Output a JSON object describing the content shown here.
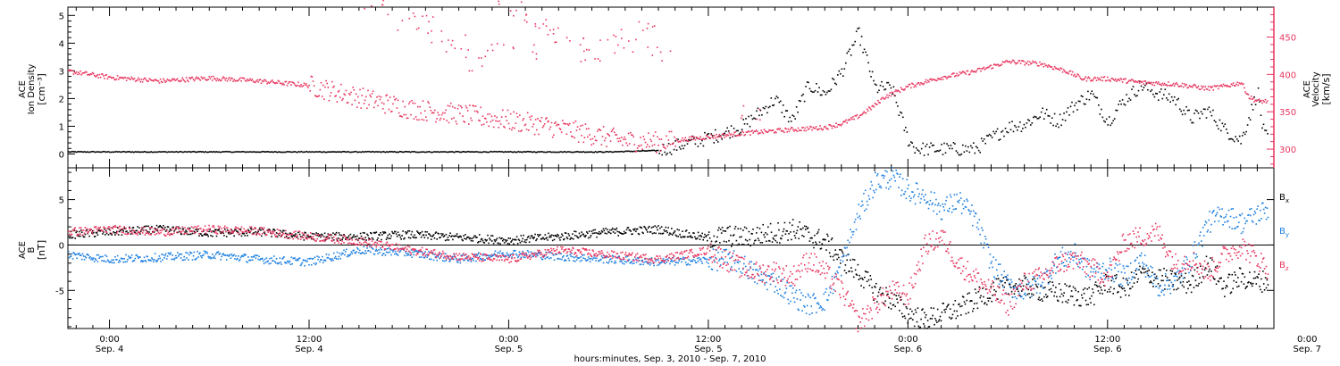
{
  "colors": {
    "black": "#000000",
    "pink": "#e8365f",
    "blue": "#1d7fe0"
  },
  "x_axis": {
    "label": "hours:minutes, Sep.  3, 2010 - Sep.  7, 2010",
    "ticks": [
      {
        "time": "0:00",
        "day": "Sep. 4"
      },
      {
        "time": "12:00",
        "day": "Sep. 4"
      },
      {
        "time": "0:00",
        "day": "Sep. 5"
      },
      {
        "time": "12:00",
        "day": "Sep. 5"
      },
      {
        "time": "0:00",
        "day": "Sep. 6"
      },
      {
        "time": "12:00",
        "day": "Sep. 6"
      },
      {
        "time": "0:00",
        "day": "Sep. 7"
      }
    ]
  },
  "chart_data": [
    {
      "type": "scatter",
      "xlabel": "hours:minutes, Sep.  3, 2010 - Sep.  7, 2010",
      "x_range_hours_from_sep4": [
        -2.5,
        70
      ],
      "left_axis": {
        "label_lines": [
          "ACE",
          "Ion Density",
          "[cm⁻³]"
        ],
        "ylim": [
          -0.5,
          5.3
        ],
        "ticks": [
          "0",
          "1",
          "2",
          "3",
          "4",
          "5"
        ]
      },
      "right_axis": {
        "label_lines": [
          "ACE",
          "Velocity",
          "[km/s]"
        ],
        "ylim": [
          275,
          490
        ],
        "ticks": [
          "300",
          "350",
          "400",
          "450"
        ]
      },
      "series": [
        {
          "color": "black",
          "axis": "left",
          "x": [
            -2.5,
            0,
            6,
            12,
            18,
            24,
            30,
            33,
            34,
            36,
            38,
            39,
            40,
            40.5,
            41,
            42,
            43,
            44,
            45,
            46,
            47,
            48,
            48.5,
            49,
            50,
            52,
            54,
            55,
            56,
            57,
            58,
            59,
            60,
            61,
            62,
            63,
            64,
            65,
            66,
            67,
            68,
            69,
            69.3,
            69.6
          ],
          "y": [
            0.1,
            0.1,
            0.1,
            0.1,
            0.1,
            0.1,
            0.1,
            0.15,
            0.3,
            0.6,
            1.0,
            1.5,
            2.0,
            1.6,
            1.2,
            2.5,
            2.2,
            3.0,
            4.4,
            2.4,
            2.4,
            0.5,
            0.2,
            0.2,
            0.2,
            0.2,
            1.0,
            1.1,
            1.5,
            1.2,
            1.8,
            2.2,
            1.2,
            2.0,
            2.5,
            2.2,
            2.0,
            1.3,
            1.6,
            0.9,
            0.5,
            2.3,
            0.9,
            0.5
          ]
        },
        {
          "color": "pink",
          "axis": "right",
          "x": [
            -2.5,
            0,
            3,
            6,
            9,
            12,
            14,
            18,
            22,
            26,
            29,
            31,
            33,
            35,
            38,
            41,
            43,
            44,
            45,
            46,
            46.5,
            48,
            50,
            52,
            54,
            56,
            57.5,
            58.5,
            60,
            62,
            64,
            66,
            67,
            68,
            68.5,
            69,
            69.6
          ],
          "y": [
            405,
            397,
            392,
            396,
            392,
            386,
            375,
            355,
            345,
            333,
            320,
            312,
            310,
            315,
            322,
            327,
            330,
            335,
            345,
            360,
            370,
            385,
            397,
            405,
            418,
            415,
            405,
            395,
            395,
            390,
            388,
            382,
            385,
            390,
            370,
            365,
            365
          ]
        },
        {
          "color": "pink",
          "axis": "right",
          "style": "sparse-outliers",
          "x": [
            16,
            18,
            19,
            20,
            21,
            22,
            23,
            24,
            25,
            25.5,
            26,
            27,
            28,
            29,
            30,
            31,
            32,
            33,
            38.3
          ],
          "y": [
            488,
            472,
            468,
            448,
            442,
            415,
            430,
            490,
            430,
            470,
            465,
            455,
            443,
            430,
            450,
            440,
            460,
            430,
            352
          ]
        }
      ]
    },
    {
      "type": "line",
      "xlabel": "hours:minutes, Sep.  3, 2010 - Sep.  7, 2010",
      "x_range_hours_from_sep4": [
        -2.5,
        70
      ],
      "left_axis": {
        "label_lines": [
          "ACE",
          "B",
          "[nT]"
        ],
        "ylim": [
          -9.2,
          8.5
        ],
        "ticks": [
          "-5",
          "0",
          "5"
        ]
      },
      "legend": [
        "Bx",
        "By",
        "Bz"
      ],
      "legend_placement": "right",
      "series": [
        {
          "name": "Bx",
          "color": "black",
          "x": [
            -2.5,
            0,
            3,
            6,
            9,
            12,
            15,
            18,
            21,
            24,
            27,
            30,
            33,
            36,
            37,
            38,
            39,
            40,
            41,
            42,
            43,
            44,
            45,
            46,
            47,
            48,
            49,
            50,
            51,
            52,
            53,
            54,
            55,
            56,
            57,
            58,
            59,
            60,
            61,
            62,
            63,
            64,
            65,
            66,
            67,
            68,
            69,
            69.6
          ],
          "y": [
            1.2,
            1.5,
            1.8,
            1.4,
            1.5,
            1.0,
            1.0,
            1.2,
            0.9,
            0.6,
            1.0,
            1.5,
            1.8,
            0.8,
            1.1,
            0.9,
            1.2,
            1.4,
            1.8,
            1.1,
            0.4,
            -1.5,
            -3.0,
            -5.0,
            -6.0,
            -7.5,
            -8.2,
            -7.5,
            -7.0,
            -6.0,
            -5.0,
            -4.5,
            -4.5,
            -5.0,
            -5.2,
            -5.5,
            -5.6,
            -4.0,
            -4.8,
            -3.0,
            -3.5,
            -4.0,
            -4.2,
            -2.0,
            -4.5,
            -3.5,
            -4.0,
            -3.8
          ]
        },
        {
          "name": "By",
          "color": "blue",
          "x": [
            -2.5,
            0,
            3,
            6,
            9,
            12,
            15,
            18,
            21,
            24,
            27,
            30,
            33,
            36,
            37,
            38,
            39,
            40,
            41,
            42,
            43,
            44,
            45,
            46,
            47,
            48,
            49,
            50,
            51,
            52,
            53,
            54,
            55,
            56,
            57,
            58,
            59,
            60,
            61,
            62,
            63,
            64,
            65,
            66,
            67,
            68,
            69,
            69.6
          ],
          "y": [
            -1.0,
            -1.5,
            -1.3,
            -1.0,
            -1.5,
            -1.8,
            -0.5,
            -0.8,
            -1.5,
            -0.8,
            -1.2,
            -1.5,
            -1.8,
            -1.6,
            -1.5,
            -2.0,
            -3.5,
            -4.0,
            -5.5,
            -6.5,
            -6.0,
            -2.0,
            3.5,
            7.0,
            7.5,
            6.0,
            5.5,
            4.0,
            5.0,
            3.0,
            -2.0,
            -4.5,
            -5.0,
            -4.0,
            -1.5,
            -1.0,
            -3.0,
            -2.5,
            -3.5,
            -1.5,
            -4.5,
            -4.0,
            -1.5,
            2.5,
            3.5,
            2.5,
            3.5,
            4.0
          ]
        },
        {
          "name": "Bz",
          "color": "pink",
          "x": [
            -2.5,
            0,
            3,
            6,
            9,
            12,
            15,
            18,
            21,
            24,
            27,
            30,
            33,
            36,
            37,
            38,
            39,
            40,
            41,
            42,
            43,
            44,
            45,
            46,
            47,
            48,
            49,
            50,
            51,
            52,
            53,
            54,
            55,
            56,
            57,
            58,
            59,
            60,
            61,
            62,
            63,
            64,
            65,
            66,
            67,
            68,
            69,
            69.6
          ],
          "y": [
            1.5,
            1.8,
            1.5,
            1.8,
            1.6,
            1.0,
            0.5,
            -0.5,
            -1.2,
            -1.5,
            -0.5,
            -1.0,
            -1.5,
            -0.5,
            -1.5,
            -2.5,
            -3.0,
            -2.8,
            -3.5,
            -1.5,
            -3.0,
            -5.0,
            -8.5,
            -6.5,
            -5.0,
            -5.5,
            0.0,
            1.0,
            -2.0,
            -3.5,
            -5.0,
            -6.5,
            -4.0,
            -3.5,
            -2.0,
            -1.5,
            -2.5,
            -3.5,
            0.5,
            1.0,
            1.5,
            -2.0,
            -1.5,
            -3.0,
            -1.0,
            0.0,
            -1.5,
            -2.5
          ]
        }
      ]
    }
  ]
}
